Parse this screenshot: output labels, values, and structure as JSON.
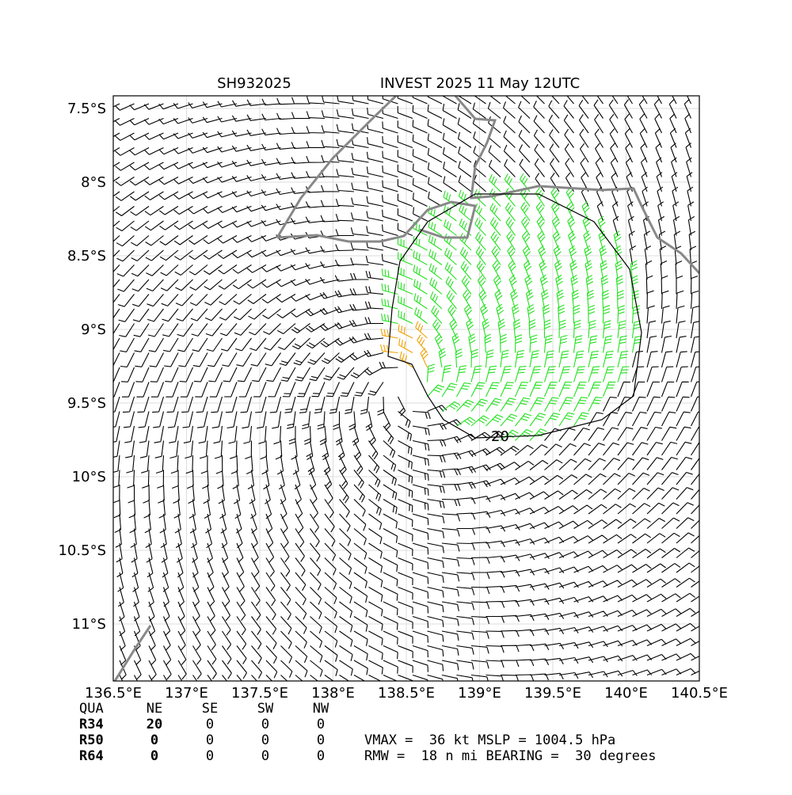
{
  "header": {
    "storm_id": "SH932025",
    "title": "INVEST 2025 11 May 12UTC"
  },
  "map": {
    "xlim": [
      136.5,
      140.5
    ],
    "ylim": [
      -11.387,
      -7.414
    ],
    "xticks": [
      {
        "value": 136.5,
        "label": "136.5°E"
      },
      {
        "value": 137,
        "label": "137°E"
      },
      {
        "value": 137.5,
        "label": "137.5°E"
      },
      {
        "value": 138,
        "label": "138°E"
      },
      {
        "value": 138.5,
        "label": "138.5°E"
      },
      {
        "value": 139,
        "label": "139°E"
      },
      {
        "value": 139.5,
        "label": "139.5°E"
      },
      {
        "value": 140,
        "label": "140°E"
      },
      {
        "value": 140.5,
        "label": "140.5°E"
      }
    ],
    "yticks": [
      {
        "value": -7.5,
        "label": "7.5°S"
      },
      {
        "value": -8,
        "label": "8°S"
      },
      {
        "value": -8.5,
        "label": "8.5°S"
      },
      {
        "value": -9,
        "label": "9°S"
      },
      {
        "value": -9.5,
        "label": "9.5°S"
      },
      {
        "value": -10,
        "label": "10°S"
      },
      {
        "value": -10.5,
        "label": "10.5°S"
      },
      {
        "value": -11,
        "label": "11°S"
      }
    ],
    "contour_label": "20"
  },
  "table": {
    "header": [
      "QUA",
      "NE",
      "SE",
      "SW",
      "NW"
    ],
    "rows": [
      [
        "R34",
        "20",
        "0",
        "0",
        "0"
      ],
      [
        "R50",
        "0",
        "0",
        "0",
        "0"
      ],
      [
        "R64",
        "0",
        "0",
        "0",
        "0"
      ]
    ]
  },
  "stats": [
    "VMAX =  36 kt MSLP = 1004.5 hPa",
    "RMW =  18 n mi BEARING =  30 degrees"
  ]
}
